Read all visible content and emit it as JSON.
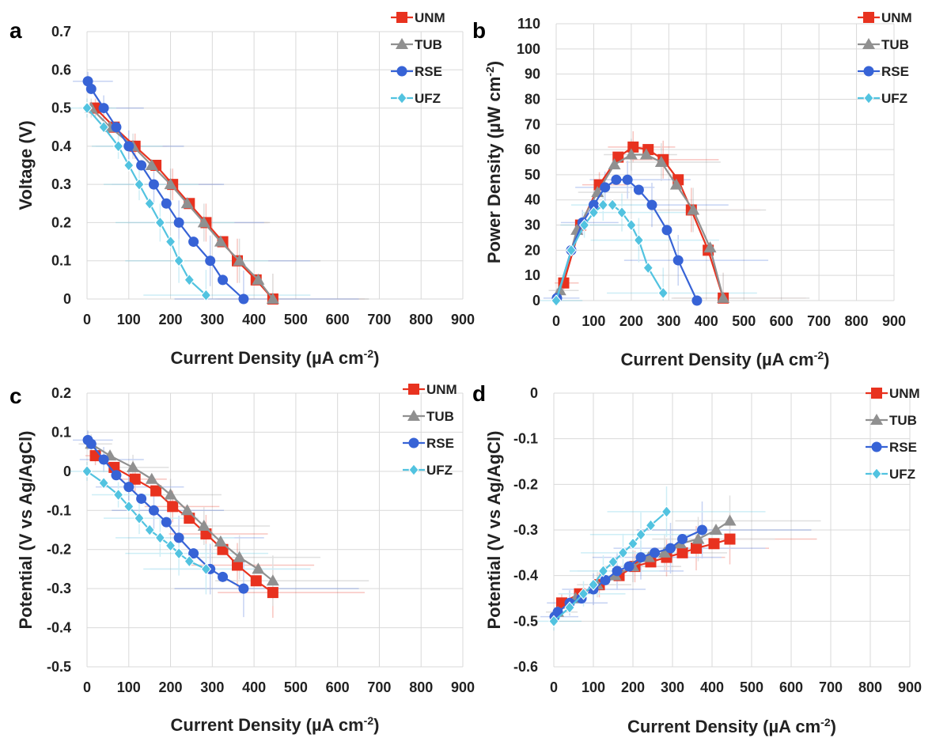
{
  "colors": {
    "UNM": "#e8321f",
    "TUB": "#909090",
    "RSE": "#3763d6",
    "UFZ": "#52c3e0"
  },
  "chart_data": [
    {
      "panel": "a",
      "type": "line",
      "xlabel_main": "Current Density (µA cm",
      "xlabel_sup": "-2",
      "xlabel_end": ")",
      "ylabel": "Voltage (V)",
      "xlim": [
        0,
        900
      ],
      "ylim": [
        0,
        0.7
      ],
      "xticks": [
        "0",
        "100",
        "200",
        "300",
        "400",
        "500",
        "600",
        "700",
        "800",
        "900"
      ],
      "yticks": [
        "0",
        "0.1",
        "0.2",
        "0.3",
        "0.4",
        "0.5",
        "0.6",
        "0.7"
      ],
      "series": [
        {
          "name": "UNM",
          "marker": "square",
          "x": [
            20,
            65,
            115,
            165,
            205,
            245,
            285,
            325,
            360,
            405,
            445
          ],
          "y": [
            0.5,
            0.45,
            0.4,
            0.35,
            0.3,
            0.25,
            0.2,
            0.15,
            0.1,
            0.05,
            0
          ]
        },
        {
          "name": "TUB",
          "marker": "triangle",
          "x": [
            10,
            55,
            110,
            155,
            200,
            240,
            280,
            320,
            365,
            410,
            445
          ],
          "y": [
            0.5,
            0.45,
            0.4,
            0.35,
            0.3,
            0.25,
            0.2,
            0.15,
            0.1,
            0.05,
            0
          ]
        },
        {
          "name": "RSE",
          "marker": "circle",
          "x": [
            2,
            10,
            40,
            70,
            100,
            130,
            160,
            190,
            220,
            255,
            295,
            325,
            375
          ],
          "y": [
            0.57,
            0.55,
            0.5,
            0.45,
            0.4,
            0.35,
            0.3,
            0.25,
            0.2,
            0.15,
            0.1,
            0.05,
            0
          ]
        },
        {
          "name": "UFZ",
          "marker": "diamond",
          "x": [
            0,
            40,
            75,
            100,
            125,
            150,
            175,
            200,
            220,
            245,
            285
          ],
          "y": [
            0.5,
            0.45,
            0.4,
            0.35,
            0.3,
            0.25,
            0.2,
            0.15,
            0.1,
            0.05,
            0.01
          ]
        }
      ]
    },
    {
      "panel": "b",
      "type": "line",
      "xlabel_main": "Current Density (µA cm",
      "xlabel_sup": "-2",
      "xlabel_end": ")",
      "ylabel": "Power Density (µW cm-2)",
      "ylabel_main": "Power Density (µW cm",
      "ylabel_sup": "-2",
      "ylabel_end": ")",
      "xlim": [
        0,
        900
      ],
      "ylim": [
        0,
        110
      ],
      "xticks": [
        "0",
        "100",
        "200",
        "300",
        "400",
        "500",
        "600",
        "700",
        "800",
        "900"
      ],
      "yticks": [
        "0",
        "10",
        "20",
        "30",
        "40",
        "50",
        "60",
        "70",
        "80",
        "90",
        "100",
        "110"
      ],
      "series": [
        {
          "name": "UNM",
          "marker": "square",
          "x": [
            20,
            65,
            115,
            165,
            205,
            245,
            285,
            325,
            360,
            405,
            445
          ],
          "y": [
            7,
            30,
            46,
            57,
            61,
            60,
            56,
            48,
            36,
            20,
            1
          ]
        },
        {
          "name": "TUB",
          "marker": "triangle",
          "x": [
            10,
            55,
            110,
            155,
            200,
            240,
            280,
            320,
            365,
            410,
            445
          ],
          "y": [
            4,
            28,
            43,
            54,
            58,
            58,
            55,
            46,
            36,
            21,
            1
          ]
        },
        {
          "name": "RSE",
          "marker": "circle",
          "x": [
            2,
            40,
            70,
            100,
            130,
            160,
            190,
            220,
            255,
            295,
            325,
            375
          ],
          "y": [
            1,
            20,
            31,
            38,
            45,
            48,
            48,
            44,
            38,
            28,
            16,
            0
          ]
        },
        {
          "name": "UFZ",
          "marker": "diamond",
          "x": [
            0,
            40,
            75,
            100,
            125,
            150,
            175,
            200,
            220,
            245,
            285
          ],
          "y": [
            0,
            20,
            30,
            35,
            38,
            38,
            35,
            30,
            24,
            13,
            3
          ]
        }
      ]
    },
    {
      "panel": "c",
      "type": "line",
      "xlabel_main": "Current Density (µA cm",
      "xlabel_sup": "-2",
      "xlabel_end": ")",
      "ylabel": "Potential (V vs Ag/AgCl)",
      "xlim": [
        0,
        900
      ],
      "ylim": [
        -0.5,
        0.2
      ],
      "xticks": [
        "0",
        "100",
        "200",
        "300",
        "400",
        "500",
        "600",
        "700",
        "800",
        "900"
      ],
      "yticks": [
        "-0.5",
        "-0.4",
        "-0.3",
        "-0.2",
        "-0.1",
        "0",
        "0.1",
        "0.2"
      ],
      "series": [
        {
          "name": "UNM",
          "marker": "square",
          "x": [
            20,
            65,
            115,
            165,
            205,
            245,
            285,
            325,
            360,
            405,
            445
          ],
          "y": [
            0.04,
            0.01,
            -0.02,
            -0.05,
            -0.09,
            -0.12,
            -0.16,
            -0.2,
            -0.24,
            -0.28,
            -0.31
          ]
        },
        {
          "name": "TUB",
          "marker": "triangle",
          "x": [
            10,
            55,
            110,
            155,
            200,
            240,
            280,
            320,
            365,
            410,
            445
          ],
          "y": [
            0.07,
            0.04,
            0.01,
            -0.02,
            -0.06,
            -0.1,
            -0.14,
            -0.18,
            -0.22,
            -0.25,
            -0.28
          ]
        },
        {
          "name": "RSE",
          "marker": "circle",
          "x": [
            2,
            10,
            40,
            70,
            100,
            130,
            160,
            190,
            220,
            255,
            295,
            325,
            375
          ],
          "y": [
            0.08,
            0.07,
            0.03,
            -0.01,
            -0.04,
            -0.07,
            -0.1,
            -0.13,
            -0.17,
            -0.21,
            -0.25,
            -0.27,
            -0.3
          ]
        },
        {
          "name": "UFZ",
          "marker": "diamond",
          "x": [
            0,
            40,
            75,
            100,
            125,
            150,
            175,
            200,
            220,
            245,
            285
          ],
          "y": [
            0,
            -0.03,
            -0.06,
            -0.09,
            -0.12,
            -0.15,
            -0.17,
            -0.19,
            -0.21,
            -0.23,
            -0.25
          ]
        }
      ]
    },
    {
      "panel": "d",
      "type": "line",
      "xlabel_main": "Current Density (µA cm",
      "xlabel_sup": "-2",
      "xlabel_end": ")",
      "ylabel": "Potential (V vs Ag/AgCl)",
      "xlim": [
        0,
        900
      ],
      "ylim": [
        -0.6,
        0
      ],
      "xticks": [
        "0",
        "100",
        "200",
        "300",
        "400",
        "500",
        "600",
        "700",
        "800",
        "900"
      ],
      "yticks": [
        "-0.6",
        "-0.5",
        "-0.4",
        "-0.3",
        "-0.2",
        "-0.1",
        "0"
      ],
      "series": [
        {
          "name": "UNM",
          "marker": "square",
          "x": [
            20,
            65,
            115,
            165,
            205,
            245,
            285,
            325,
            360,
            405,
            445
          ],
          "y": [
            -0.46,
            -0.44,
            -0.42,
            -0.4,
            -0.38,
            -0.37,
            -0.36,
            -0.35,
            -0.34,
            -0.33,
            -0.32
          ]
        },
        {
          "name": "TUB",
          "marker": "triangle",
          "x": [
            10,
            55,
            110,
            155,
            200,
            240,
            280,
            320,
            365,
            410,
            445
          ],
          "y": [
            -0.48,
            -0.45,
            -0.42,
            -0.4,
            -0.38,
            -0.36,
            -0.35,
            -0.33,
            -0.32,
            -0.3,
            -0.28
          ]
        },
        {
          "name": "RSE",
          "marker": "circle",
          "x": [
            2,
            10,
            40,
            70,
            100,
            130,
            160,
            190,
            220,
            255,
            295,
            325,
            375
          ],
          "y": [
            -0.49,
            -0.48,
            -0.46,
            -0.45,
            -0.43,
            -0.41,
            -0.39,
            -0.38,
            -0.36,
            -0.35,
            -0.34,
            -0.32,
            -0.3
          ]
        },
        {
          "name": "UFZ",
          "marker": "diamond",
          "x": [
            0,
            40,
            75,
            100,
            125,
            150,
            175,
            200,
            220,
            245,
            285
          ],
          "y": [
            -0.5,
            -0.47,
            -0.44,
            -0.42,
            -0.39,
            -0.37,
            -0.35,
            -0.33,
            -0.31,
            -0.29,
            -0.26
          ]
        }
      ]
    }
  ]
}
